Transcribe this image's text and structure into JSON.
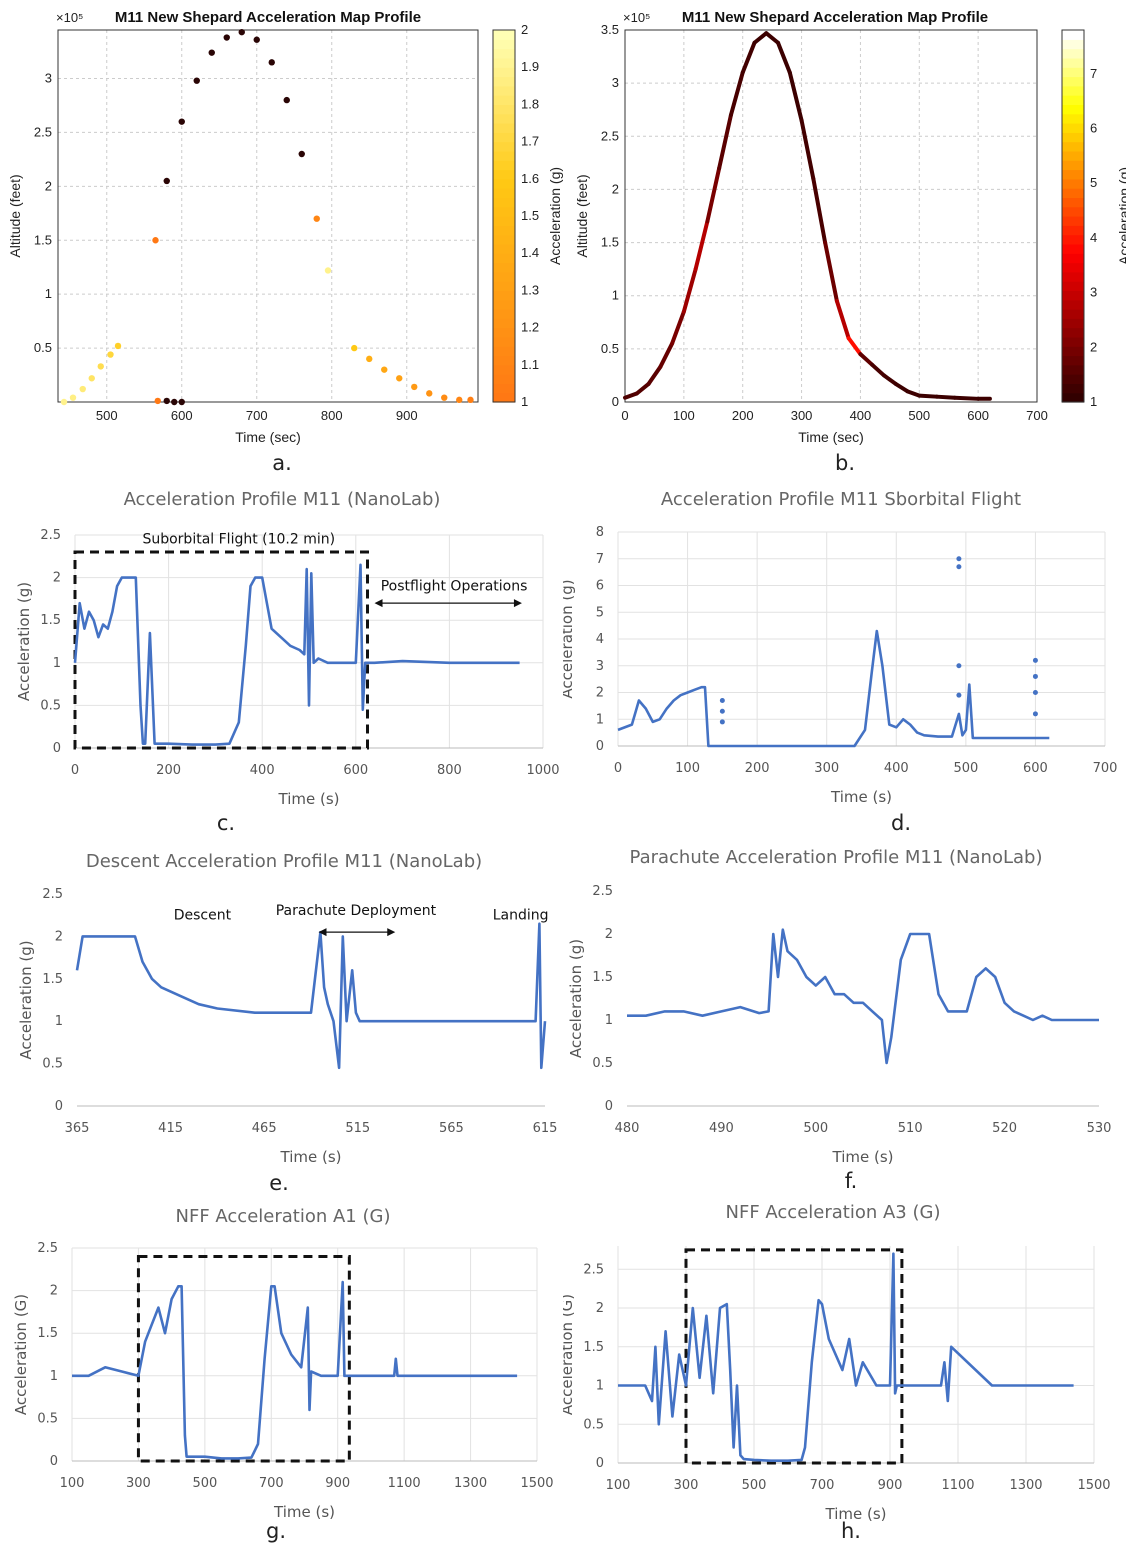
{
  "captions": [
    "a.",
    "b.",
    "c.",
    "d.",
    "e.",
    "f.",
    "g.",
    "h."
  ],
  "chart_data": [
    {
      "id": "a",
      "type": "scatter",
      "title": "M11 New Shepard Acceleration Map Profile",
      "xlabel": "Time (sec)",
      "ylabel": "Altitude (feet)",
      "y_exponent": "×10⁵",
      "xlim": [
        435,
        995
      ],
      "ylim": [
        0,
        3.45
      ],
      "xticks": [
        500,
        600,
        700,
        800,
        900
      ],
      "yticks": [
        0.5,
        1,
        1.5,
        2,
        2.5,
        3
      ],
      "grid": true,
      "colorbar": {
        "label": "Acceleration (g)",
        "min": 1,
        "max": 2,
        "ticks": [
          1,
          1.1,
          1.2,
          1.3,
          1.4,
          1.5,
          1.6,
          1.7,
          1.8,
          1.9,
          2
        ],
        "colormap": "hot"
      },
      "series": [
        {
          "x": [
            443,
            455,
            468,
            480,
            492,
            505,
            515
          ],
          "y": [
            0.0,
            0.04,
            0.12,
            0.22,
            0.33,
            0.44,
            0.52
          ],
          "c": [
            1.9,
            1.88,
            1.85,
            1.8,
            1.75,
            1.7,
            1.65
          ]
        },
        {
          "x": [
            565,
            580,
            600,
            620,
            640,
            660,
            680,
            700,
            720,
            740,
            760,
            780,
            795
          ],
          "y": [
            1.5,
            2.05,
            2.6,
            2.98,
            3.24,
            3.38,
            3.43,
            3.36,
            3.15,
            2.8,
            2.3,
            1.7,
            1.22
          ],
          "c": [
            1.0,
            0.9,
            0.9,
            0.9,
            0.9,
            0.9,
            0.9,
            0.9,
            0.9,
            0.9,
            0.9,
            1.1,
            1.9
          ]
        },
        {
          "x": [
            568,
            580,
            590,
            600
          ],
          "y": [
            0.01,
            0.01,
            0.0,
            0.0
          ],
          "c": [
            1.0,
            0.95,
            0.9,
            0.9
          ]
        },
        {
          "x": [
            830,
            850,
            870,
            890,
            910,
            930,
            950,
            970,
            985
          ],
          "y": [
            0.5,
            0.4,
            0.3,
            0.22,
            0.14,
            0.08,
            0.04,
            0.02,
            0.02
          ],
          "c": [
            1.6,
            1.4,
            1.35,
            1.3,
            1.25,
            1.2,
            1.15,
            1.1,
            1.05
          ]
        }
      ]
    },
    {
      "id": "b",
      "type": "line",
      "title": "M11 New Shepard Acceleration Map Profile",
      "xlabel": "Time (sec)",
      "ylabel": "Altitude (feet)",
      "y_exponent": "×10⁵",
      "xlim": [
        0,
        700
      ],
      "ylim": [
        0,
        3.5
      ],
      "xticks": [
        0,
        100,
        200,
        300,
        400,
        500,
        600,
        700
      ],
      "yticks": [
        0,
        0.5,
        1,
        1.5,
        2,
        2.5,
        3,
        3.5
      ],
      "grid": true,
      "colorbar": {
        "label": "Acceleration (g)",
        "min": 1,
        "max": 7.8,
        "ticks": [
          1,
          2,
          3,
          4,
          5,
          6,
          7
        ],
        "colormap": "hot"
      },
      "series": [
        {
          "x": [
            0,
            20,
            40,
            60,
            80,
            100,
            120,
            140,
            160,
            180,
            200,
            220,
            240,
            260,
            280,
            300,
            320,
            340,
            360,
            380,
            400,
            420,
            440,
            460,
            480,
            500,
            530,
            560,
            600,
            620
          ],
          "y": [
            0.04,
            0.08,
            0.17,
            0.33,
            0.55,
            0.85,
            1.25,
            1.7,
            2.2,
            2.7,
            3.1,
            3.38,
            3.47,
            3.38,
            3.1,
            2.65,
            2.1,
            1.5,
            0.95,
            0.6,
            0.45,
            0.35,
            0.25,
            0.17,
            0.1,
            0.06,
            0.05,
            0.04,
            0.03,
            0.03
          ],
          "c": [
            1.3,
            1.4,
            1.5,
            1.7,
            2.0,
            2.6,
            3.0,
            2.0,
            1.5,
            1.2,
            1.1,
            1.0,
            1.0,
            1.0,
            1.0,
            1.1,
            1.2,
            1.8,
            3.0,
            4.4,
            1.6,
            1.2,
            1.1,
            1.0,
            1.0,
            1.0,
            1.0,
            1.0,
            1.0,
            1.0
          ]
        }
      ]
    },
    {
      "id": "c",
      "type": "line",
      "title": "Acceleration Profile M11 (NanoLab)",
      "xlabel": "Time (s)",
      "ylabel": "Acceleration (g)",
      "xlim": [
        0,
        1000
      ],
      "ylim": [
        0,
        2.5
      ],
      "xticks": [
        0,
        200,
        400,
        600,
        800,
        1000
      ],
      "yticks": [
        0,
        0.5,
        1,
        1.5,
        2,
        2.5
      ],
      "grid": true,
      "annotations": [
        {
          "text": "Suborbital Flight (10.2 min)",
          "x": 350,
          "y": 2.4
        },
        {
          "text": "Postflight Operations",
          "x": 810,
          "y": 1.85
        }
      ],
      "box": {
        "x": [
          0,
          625
        ],
        "y": [
          0,
          2.3
        ]
      },
      "arrow": {
        "x": [
          640,
          955
        ],
        "y": 1.7
      },
      "series": [
        {
          "x": [
            0,
            10,
            20,
            30,
            40,
            50,
            60,
            70,
            80,
            90,
            100,
            110,
            120,
            130,
            140,
            145,
            150,
            160,
            170,
            200,
            250,
            300,
            330,
            350,
            365,
            375,
            385,
            400,
            410,
            420,
            440,
            460,
            480,
            490,
            495,
            500,
            505,
            510,
            520,
            540,
            560,
            580,
            600,
            610,
            615,
            620,
            640,
            700,
            800,
            900,
            950
          ],
          "y": [
            1.0,
            1.7,
            1.4,
            1.6,
            1.5,
            1.3,
            1.45,
            1.4,
            1.6,
            1.9,
            2.0,
            2.0,
            2.0,
            2.0,
            0.5,
            0.05,
            0.05,
            1.35,
            0.05,
            0.05,
            0.04,
            0.04,
            0.05,
            0.3,
            1.2,
            1.9,
            2.0,
            2.0,
            1.7,
            1.4,
            1.3,
            1.2,
            1.15,
            1.1,
            2.1,
            0.5,
            2.05,
            1.0,
            1.05,
            1.0,
            1.0,
            1.0,
            1.0,
            2.15,
            0.45,
            1.0,
            1.0,
            1.02,
            1.0,
            1.0,
            1.0
          ]
        }
      ]
    },
    {
      "id": "d",
      "type": "line",
      "title": "Acceleration Profile M11 Sborbital Flight",
      "xlabel": "Time (s)",
      "ylabel": "Acceleration (g)",
      "xlim": [
        0,
        700
      ],
      "ylim": [
        0,
        8
      ],
      "xticks": [
        0,
        100,
        200,
        300,
        400,
        500,
        600,
        700
      ],
      "yticks": [
        0,
        1,
        2,
        3,
        4,
        5,
        6,
        7,
        8
      ],
      "grid": true,
      "series": [
        {
          "x": [
            0,
            20,
            30,
            40,
            50,
            60,
            70,
            80,
            90,
            100,
            110,
            120,
            125,
            130,
            150,
            200,
            300,
            340,
            355,
            365,
            372,
            380,
            390,
            400,
            410,
            420,
            430,
            440,
            460,
            480,
            490,
            495,
            500,
            505,
            510,
            530,
            560,
            600,
            610,
            620
          ],
          "y": [
            0.6,
            0.8,
            1.7,
            1.4,
            0.9,
            1.0,
            1.4,
            1.7,
            1.9,
            2.0,
            2.1,
            2.2,
            2.2,
            0.0,
            0.0,
            0.0,
            0.0,
            0.0,
            0.6,
            2.8,
            4.3,
            3.0,
            0.8,
            0.7,
            1.0,
            0.8,
            0.5,
            0.4,
            0.35,
            0.35,
            1.2,
            0.4,
            0.6,
            2.3,
            0.3,
            0.3,
            0.3,
            0.3,
            0.3,
            0.3
          ]
        },
        {
          "x": [
            150,
            150,
            150,
            490,
            490,
            490,
            490,
            600,
            600,
            600,
            600
          ],
          "y": [
            1.7,
            1.3,
            0.9,
            7.0,
            6.7,
            3.0,
            1.9,
            3.2,
            2.6,
            2.0,
            1.2
          ]
        }
      ]
    },
    {
      "id": "e",
      "type": "line",
      "title": "Descent Acceleration Profile M11 (NanoLab)",
      "xlabel": "Time (s)",
      "ylabel": "Acceleration (g)",
      "xlim": [
        365,
        615
      ],
      "ylim": [
        0,
        2.5
      ],
      "xticks": [
        365,
        415,
        465,
        515,
        565,
        615
      ],
      "yticks": [
        0,
        0.5,
        1,
        1.5,
        2,
        2.5
      ],
      "grid": false,
      "annotations": [
        {
          "text": "Descent",
          "x": 432,
          "y": 2.2
        },
        {
          "text": "Parachute Deployment",
          "x": 514,
          "y": 2.25
        },
        {
          "text": "Landing",
          "x": 602,
          "y": 2.2
        }
      ],
      "arrow": {
        "x": [
          494,
          535
        ],
        "y": 2.05
      },
      "series": [
        {
          "x": [
            365,
            368,
            372,
            380,
            390,
            396,
            400,
            405,
            410,
            420,
            430,
            440,
            460,
            480,
            490,
            495,
            497,
            499,
            502,
            505,
            507,
            509,
            512,
            514,
            516,
            520,
            530,
            560,
            590,
            610,
            612,
            613,
            615
          ],
          "y": [
            1.6,
            2.0,
            2.0,
            2.0,
            2.0,
            2.0,
            1.7,
            1.5,
            1.4,
            1.3,
            1.2,
            1.15,
            1.1,
            1.1,
            1.1,
            2.05,
            1.4,
            1.2,
            1.0,
            0.45,
            2.0,
            1.0,
            1.6,
            1.1,
            1.0,
            1.0,
            1.0,
            1.0,
            1.0,
            1.0,
            2.15,
            0.45,
            1.0
          ]
        }
      ]
    },
    {
      "id": "f",
      "type": "line",
      "title": "Parachute Acceleration Profile M11 (NanoLab)",
      "xlabel": "Time (s)",
      "ylabel": "Acceleration (g)",
      "xlim": [
        480,
        530
      ],
      "ylim": [
        0,
        2.5
      ],
      "xticks": [
        480,
        490,
        500,
        510,
        520,
        530
      ],
      "yticks": [
        0,
        0.5,
        1,
        1.5,
        2,
        2.5
      ],
      "grid": false,
      "series": [
        {
          "x": [
            480,
            482,
            484,
            486,
            488,
            490,
            492,
            494,
            495,
            495.5,
            496,
            496.5,
            497,
            498,
            499,
            500,
            501,
            502,
            503,
            504,
            505,
            506,
            507,
            507.5,
            508,
            509,
            510,
            511,
            512,
            513,
            514,
            515,
            516,
            517,
            518,
            519,
            520,
            521,
            522,
            523,
            524,
            525,
            526,
            528,
            530
          ],
          "y": [
            1.05,
            1.05,
            1.1,
            1.1,
            1.05,
            1.1,
            1.15,
            1.08,
            1.1,
            2.0,
            1.5,
            2.05,
            1.8,
            1.7,
            1.5,
            1.4,
            1.5,
            1.3,
            1.3,
            1.2,
            1.2,
            1.1,
            1.0,
            0.5,
            0.8,
            1.7,
            2.0,
            2.0,
            2.0,
            1.3,
            1.1,
            1.1,
            1.1,
            1.5,
            1.6,
            1.5,
            1.2,
            1.1,
            1.05,
            1.0,
            1.05,
            1.0,
            1.0,
            1.0,
            1.0
          ]
        }
      ]
    },
    {
      "id": "g",
      "type": "line",
      "title": "NFF Acceleration  A1 (G)",
      "xlabel": "Time (s)",
      "ylabel": "Acceleration (G)",
      "xlim": [
        100,
        1500
      ],
      "ylim": [
        0,
        2.5
      ],
      "xticks": [
        100,
        300,
        500,
        700,
        900,
        1100,
        1300,
        1500
      ],
      "yticks": [
        0,
        0.5,
        1,
        1.5,
        2,
        2.5
      ],
      "grid": true,
      "box": {
        "x": [
          300,
          935
        ],
        "y": [
          0,
          2.4
        ]
      },
      "series": [
        {
          "x": [
            100,
            150,
            200,
            250,
            300,
            320,
            340,
            360,
            380,
            400,
            420,
            430,
            440,
            445,
            450,
            500,
            550,
            600,
            640,
            660,
            680,
            700,
            710,
            730,
            760,
            790,
            810,
            815,
            820,
            850,
            900,
            915,
            920,
            1000,
            1070,
            1075,
            1080,
            1200,
            1300,
            1440
          ],
          "y": [
            1.0,
            1.0,
            1.1,
            1.05,
            1.0,
            1.4,
            1.6,
            1.8,
            1.5,
            1.9,
            2.05,
            2.05,
            0.3,
            0.05,
            0.05,
            0.05,
            0.03,
            0.03,
            0.04,
            0.2,
            1.2,
            2.05,
            2.05,
            1.5,
            1.25,
            1.1,
            1.8,
            0.6,
            1.05,
            1.0,
            1.0,
            2.1,
            1.0,
            1.0,
            1.0,
            1.2,
            1.0,
            1.0,
            1.0,
            1.0
          ]
        }
      ]
    },
    {
      "id": "h",
      "type": "line",
      "title": "NFF Acceleration A3 (G)",
      "xlabel": "Time (s)",
      "ylabel": "Acceleration (G)",
      "xlim": [
        100,
        1500
      ],
      "ylim": [
        0,
        2.8
      ],
      "xticks": [
        100,
        300,
        500,
        700,
        900,
        1100,
        1300,
        1500
      ],
      "yticks": [
        0,
        0.5,
        1,
        1.5,
        2,
        2.5
      ],
      "grid": true,
      "box": {
        "x": [
          300,
          935
        ],
        "y": [
          0,
          2.75
        ]
      },
      "series": [
        {
          "x": [
            100,
            180,
            200,
            210,
            220,
            240,
            260,
            280,
            300,
            320,
            340,
            360,
            380,
            400,
            420,
            430,
            440,
            450,
            460,
            470,
            500,
            550,
            600,
            640,
            650,
            670,
            690,
            700,
            720,
            740,
            760,
            780,
            800,
            820,
            860,
            900,
            910,
            915,
            920,
            1000,
            1050,
            1060,
            1070,
            1080,
            1200,
            1300,
            1440
          ],
          "y": [
            1.0,
            1.0,
            0.8,
            1.5,
            0.5,
            1.7,
            0.6,
            1.4,
            1.0,
            2.0,
            1.1,
            1.9,
            0.9,
            2.0,
            2.05,
            1.2,
            0.2,
            1.0,
            0.1,
            0.05,
            0.04,
            0.03,
            0.03,
            0.04,
            0.2,
            1.3,
            2.1,
            2.05,
            1.6,
            1.4,
            1.2,
            1.6,
            1.0,
            1.3,
            1.0,
            1.0,
            2.7,
            0.9,
            1.0,
            1.0,
            1.0,
            1.3,
            0.8,
            1.5,
            1.0,
            1.0,
            1.0
          ]
        }
      ]
    }
  ]
}
